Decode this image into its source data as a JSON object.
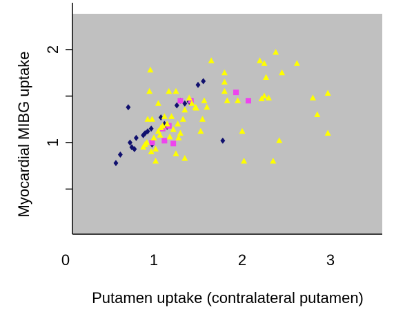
{
  "chart_data": {
    "type": "scatter",
    "title": "",
    "xlabel": "Putamen uptake (contralateral putamen)",
    "ylabel": "Myocardial MIBG uptake",
    "xlim": [
      0,
      3.6
    ],
    "ylim": [
      0.0,
      2.4
    ],
    "x_ticks": [
      0,
      1,
      2,
      3
    ],
    "y_ticks": [
      1,
      2
    ],
    "grid": false,
    "legend": null,
    "plot_background": "#c0c0c0",
    "series": [
      {
        "marker": "diamond",
        "color": "#10106e",
        "points": [
          [
            0.57,
            0.78
          ],
          [
            0.62,
            0.87
          ],
          [
            0.71,
            1.38
          ],
          [
            0.73,
            1.0
          ],
          [
            0.75,
            0.95
          ],
          [
            0.78,
            0.93
          ],
          [
            0.8,
            1.05
          ],
          [
            0.88,
            1.08
          ],
          [
            0.9,
            1.1
          ],
          [
            0.93,
            1.12
          ],
          [
            0.97,
            1.15
          ],
          [
            0.98,
            0.98
          ],
          [
            1.08,
            1.27
          ],
          [
            1.12,
            1.2
          ],
          [
            1.15,
            1.17
          ],
          [
            1.26,
            1.4
          ],
          [
            1.3,
            1.45
          ],
          [
            1.35,
            1.42
          ],
          [
            1.4,
            1.44
          ],
          [
            1.5,
            1.62
          ],
          [
            1.56,
            1.66
          ],
          [
            1.78,
            1.02
          ]
        ]
      },
      {
        "marker": "square",
        "color": "#ee44ee",
        "points": [
          [
            0.98,
            1.0
          ],
          [
            1.1,
            1.15
          ],
          [
            1.12,
            1.02
          ],
          [
            1.17,
            1.18
          ],
          [
            1.22,
            0.99
          ],
          [
            1.3,
            1.45
          ],
          [
            1.42,
            1.45
          ],
          [
            1.93,
            1.54
          ],
          [
            2.07,
            1.45
          ]
        ]
      },
      {
        "marker": "triangle",
        "color": "#ffff00",
        "points": [
          [
            0.88,
            0.95
          ],
          [
            0.9,
            0.98
          ],
          [
            0.92,
            1.0
          ],
          [
            0.93,
            1.25
          ],
          [
            0.95,
            1.55
          ],
          [
            0.96,
            1.78
          ],
          [
            0.97,
            0.9
          ],
          [
            0.98,
            1.25
          ],
          [
            1.0,
            1.05
          ],
          [
            1.02,
            0.93
          ],
          [
            1.02,
            0.8
          ],
          [
            1.05,
            1.12
          ],
          [
            1.05,
            1.42
          ],
          [
            1.07,
            1.08
          ],
          [
            1.08,
            1.16
          ],
          [
            1.1,
            1.18
          ],
          [
            1.12,
            1.28
          ],
          [
            1.15,
            1.2
          ],
          [
            1.17,
            1.55
          ],
          [
            1.18,
            1.06
          ],
          [
            1.2,
            1.28
          ],
          [
            1.22,
            1.14
          ],
          [
            1.25,
            0.88
          ],
          [
            1.25,
            1.55
          ],
          [
            1.27,
            1.2
          ],
          [
            1.28,
            1.05
          ],
          [
            1.3,
            1.1
          ],
          [
            1.33,
            1.25
          ],
          [
            1.35,
            0.83
          ],
          [
            1.35,
            1.35
          ],
          [
            1.4,
            1.48
          ],
          [
            1.43,
            1.42
          ],
          [
            1.47,
            1.38
          ],
          [
            1.48,
            1.37
          ],
          [
            1.53,
            1.12
          ],
          [
            1.55,
            1.25
          ],
          [
            1.57,
            1.45
          ],
          [
            1.6,
            1.38
          ],
          [
            1.65,
            1.88
          ],
          [
            1.8,
            1.55
          ],
          [
            1.8,
            1.65
          ],
          [
            1.8,
            1.75
          ],
          [
            1.83,
            1.45
          ],
          [
            1.95,
            1.45
          ],
          [
            2.0,
            1.12
          ],
          [
            2.02,
            0.8
          ],
          [
            2.2,
            1.88
          ],
          [
            2.22,
            1.47
          ],
          [
            2.25,
            1.5
          ],
          [
            2.25,
            1.85
          ],
          [
            2.27,
            1.7
          ],
          [
            2.3,
            1.48
          ],
          [
            2.35,
            0.8
          ],
          [
            2.38,
            1.97
          ],
          [
            2.42,
            1.02
          ],
          [
            2.45,
            1.75
          ],
          [
            2.62,
            1.85
          ],
          [
            2.8,
            1.48
          ],
          [
            2.85,
            1.3
          ],
          [
            2.97,
            1.53
          ],
          [
            2.97,
            1.1
          ]
        ]
      }
    ]
  }
}
